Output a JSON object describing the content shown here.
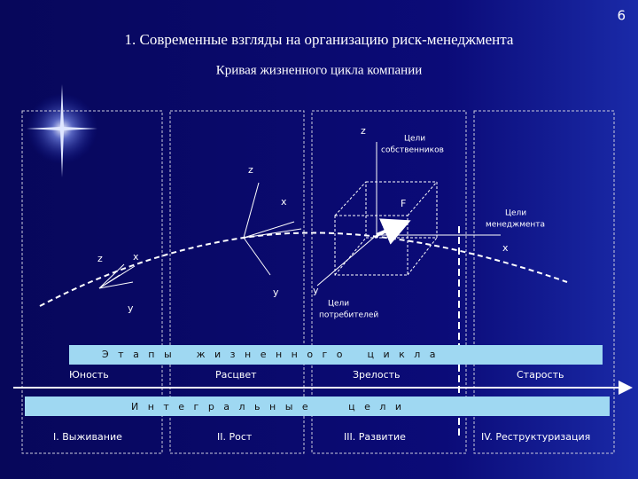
{
  "header": {
    "page": "6",
    "title": "1. Современные взгляды на организацию риск-менеджмента",
    "subtitle": "Кривая жизненного цикла компании"
  },
  "axes": {
    "a": {
      "z": "z",
      "x": "x",
      "y": "y"
    },
    "b": {
      "z": "z",
      "x": "x",
      "y": "y"
    },
    "c": {
      "z": "z",
      "x": "x",
      "y": "y",
      "force": "F"
    }
  },
  "goals": {
    "owners": [
      "Цели",
      "собственников"
    ],
    "management": [
      "Цели",
      "менеджмента"
    ],
    "consumers": [
      "Цели",
      "потребителей"
    ]
  },
  "bands": {
    "stages_title": "Э   т   а   п   ы        ж   и   з   н   е   н   н   о   г   о        ц   и   к   л   а",
    "integral_title": "И   н   т   е   г   р   а   л   ь   н   ы   е             ц   е   л   и"
  },
  "stages": [
    "Юность",
    "Расцвет",
    "Зрелость",
    "Старость"
  ],
  "phases": [
    "I. Выживание",
    "II. Рост",
    "III. Развитие",
    "IV. Реструктуризация"
  ]
}
